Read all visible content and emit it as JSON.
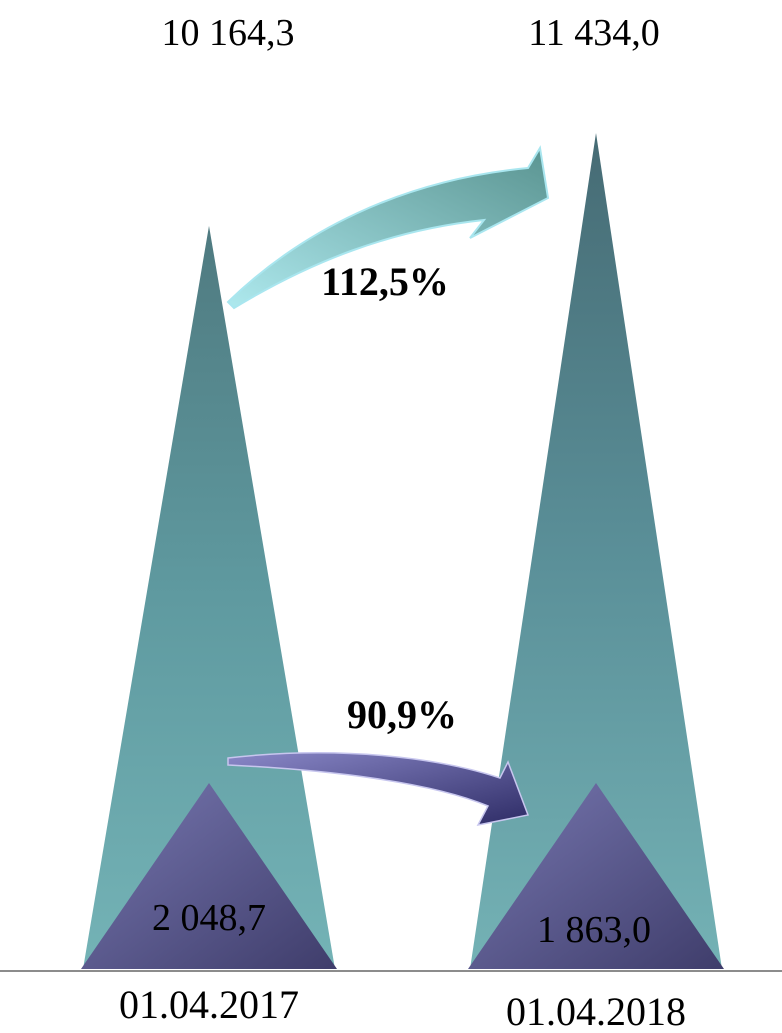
{
  "chart_data": {
    "type": "bar",
    "categories": [
      "01.04.2017",
      "01.04.2018"
    ],
    "series": [
      {
        "values": [
          10164.3,
          11434.0
        ],
        "labels": [
          "10 164,3",
          "11 434,0"
        ],
        "color": "#6aa3a6"
      },
      {
        "values": [
          2048.7,
          1863.0
        ],
        "labels": [
          "2 048,7",
          "1 863,0"
        ],
        "color": "#6b6a9e"
      }
    ],
    "growth": [
      {
        "series": 0,
        "label": "112,5%",
        "color": "#5fa3a0"
      },
      {
        "series": 1,
        "label": "90,9%",
        "color": "#3b3a78"
      }
    ],
    "title": "",
    "xlabel": "",
    "ylabel": ""
  }
}
